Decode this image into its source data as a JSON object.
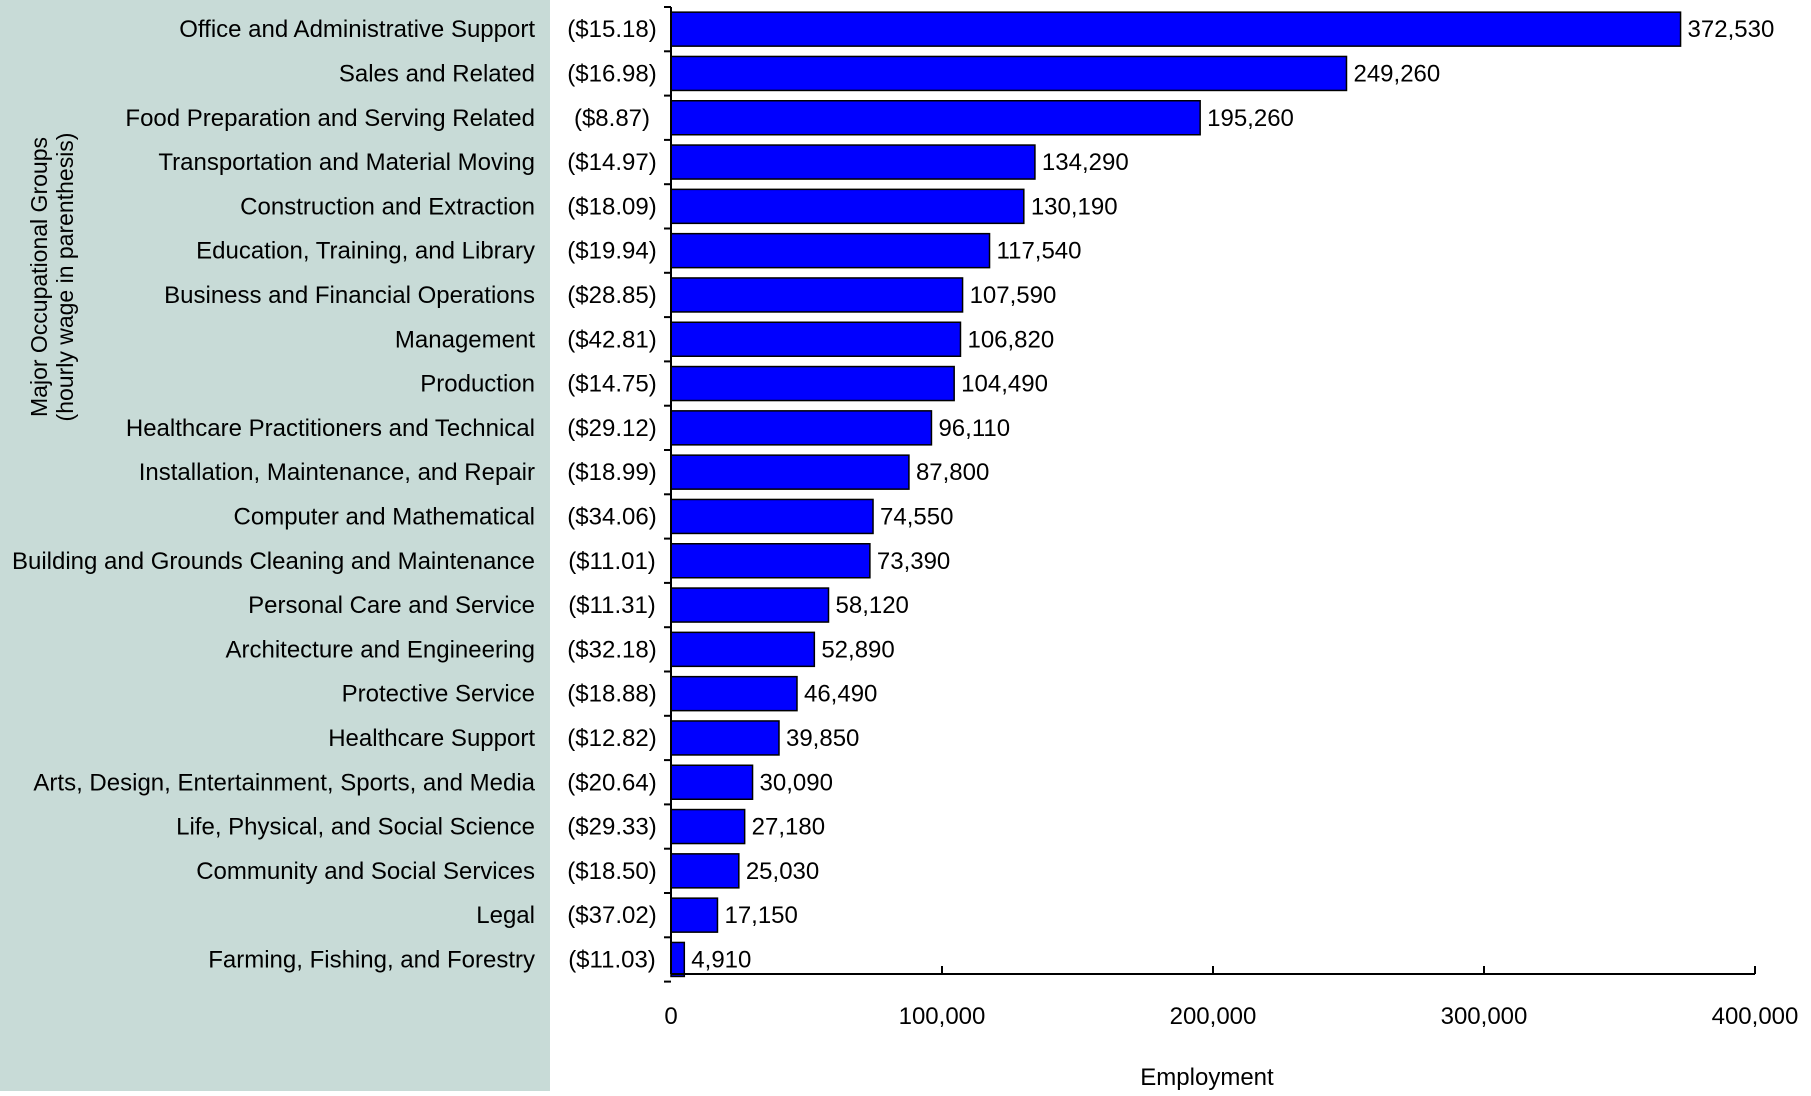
{
  "chart_data": {
    "type": "bar",
    "orientation": "horizontal",
    "ylabel_line1": "Major Occupational Groups",
    "ylabel_line2": "(hourly wage in parenthesis)",
    "xlabel": "Employment",
    "xlim": [
      0,
      400000
    ],
    "xticks": [
      "0",
      "100,000",
      "200,000",
      "300,000",
      "400,000"
    ],
    "xtick_values": [
      0,
      100000,
      200000,
      300000,
      400000
    ],
    "categories": [
      "Office and Administrative Support",
      "Sales and Related",
      "Food Preparation and Serving Related",
      "Transportation and Material Moving",
      "Construction and Extraction",
      "Education, Training, and Library",
      "Business and Financial Operations",
      "Management",
      "Production",
      "Healthcare Practitioners and Technical",
      "Installation, Maintenance, and Repair",
      "Computer and Mathematical",
      "Building and Grounds Cleaning and Maintenance",
      "Personal Care and Service",
      "Architecture and Engineering",
      "Protective Service",
      "Healthcare Support",
      "Arts, Design, Entertainment, Sports, and Media",
      "Life, Physical, and Social Science",
      "Community and Social Services",
      "Legal",
      "Farming, Fishing, and Forestry"
    ],
    "wages": [
      "($15.18)",
      "($16.98)",
      "($8.87)",
      "($14.97)",
      "($18.09)",
      "($19.94)",
      "($28.85)",
      "($42.81)",
      "($14.75)",
      "($29.12)",
      "($18.99)",
      "($34.06)",
      "($11.01)",
      "($11.31)",
      "($32.18)",
      "($18.88)",
      "($12.82)",
      "($20.64)",
      "($29.33)",
      "($18.50)",
      "($37.02)",
      "($11.03)"
    ],
    "values": [
      372530,
      249260,
      195260,
      134290,
      130190,
      117540,
      107590,
      106820,
      104490,
      96110,
      87800,
      74550,
      73390,
      58120,
      52890,
      46490,
      39850,
      30090,
      27180,
      25030,
      17150,
      4910
    ],
    "value_labels": [
      "372,530",
      "249,260",
      "195,260",
      "134,290",
      "130,190",
      "117,540",
      "107,590",
      "106,820",
      "104,490",
      "96,110",
      "87,800",
      "74,550",
      "73,390",
      "58,120",
      "52,890",
      "46,490",
      "39,850",
      "30,090",
      "27,180",
      "25,030",
      "17,150",
      "4,910"
    ],
    "bar_color": "#0000ff",
    "label_panel_color": "#c8dbd7",
    "grid": false
  }
}
